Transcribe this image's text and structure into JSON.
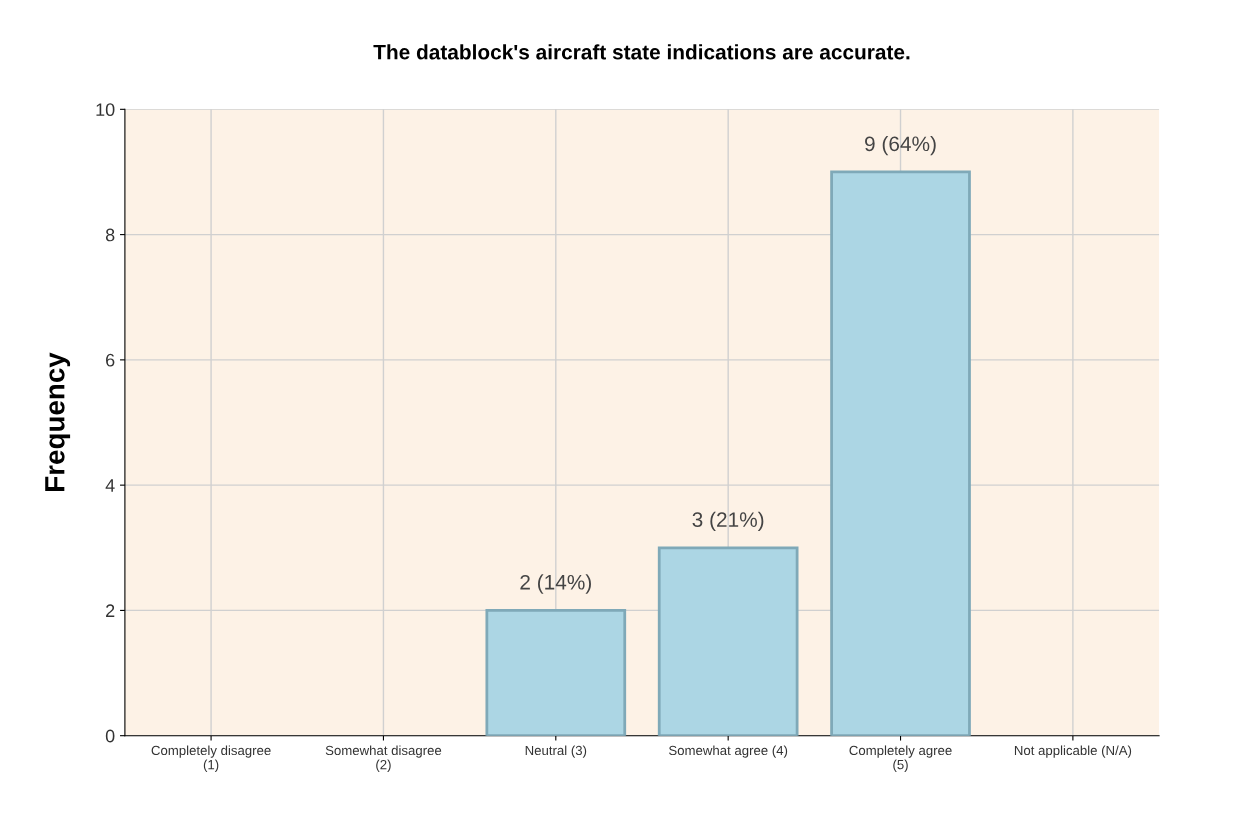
{
  "chart_data": {
    "type": "bar",
    "title": "The datablock's aircraft state indications are accurate.",
    "ylabel": "Frequency",
    "categories": [
      "Completely disagree\n(1)",
      "Somewhat disagree\n(2)",
      "Neutral (3)",
      "Somewhat agree (4)",
      "Completely agree\n(5)",
      "Not applicable (N/A)"
    ],
    "values": [
      0,
      0,
      2,
      3,
      9,
      0
    ],
    "value_labels": [
      null,
      null,
      "2 (14%)",
      "3 (21%)",
      "9 (64%)",
      null
    ],
    "color": "#acd6e4",
    "ylim": [
      0,
      10
    ],
    "yticks": [
      0,
      2,
      4,
      6,
      8,
      10
    ],
    "grid": true
  }
}
